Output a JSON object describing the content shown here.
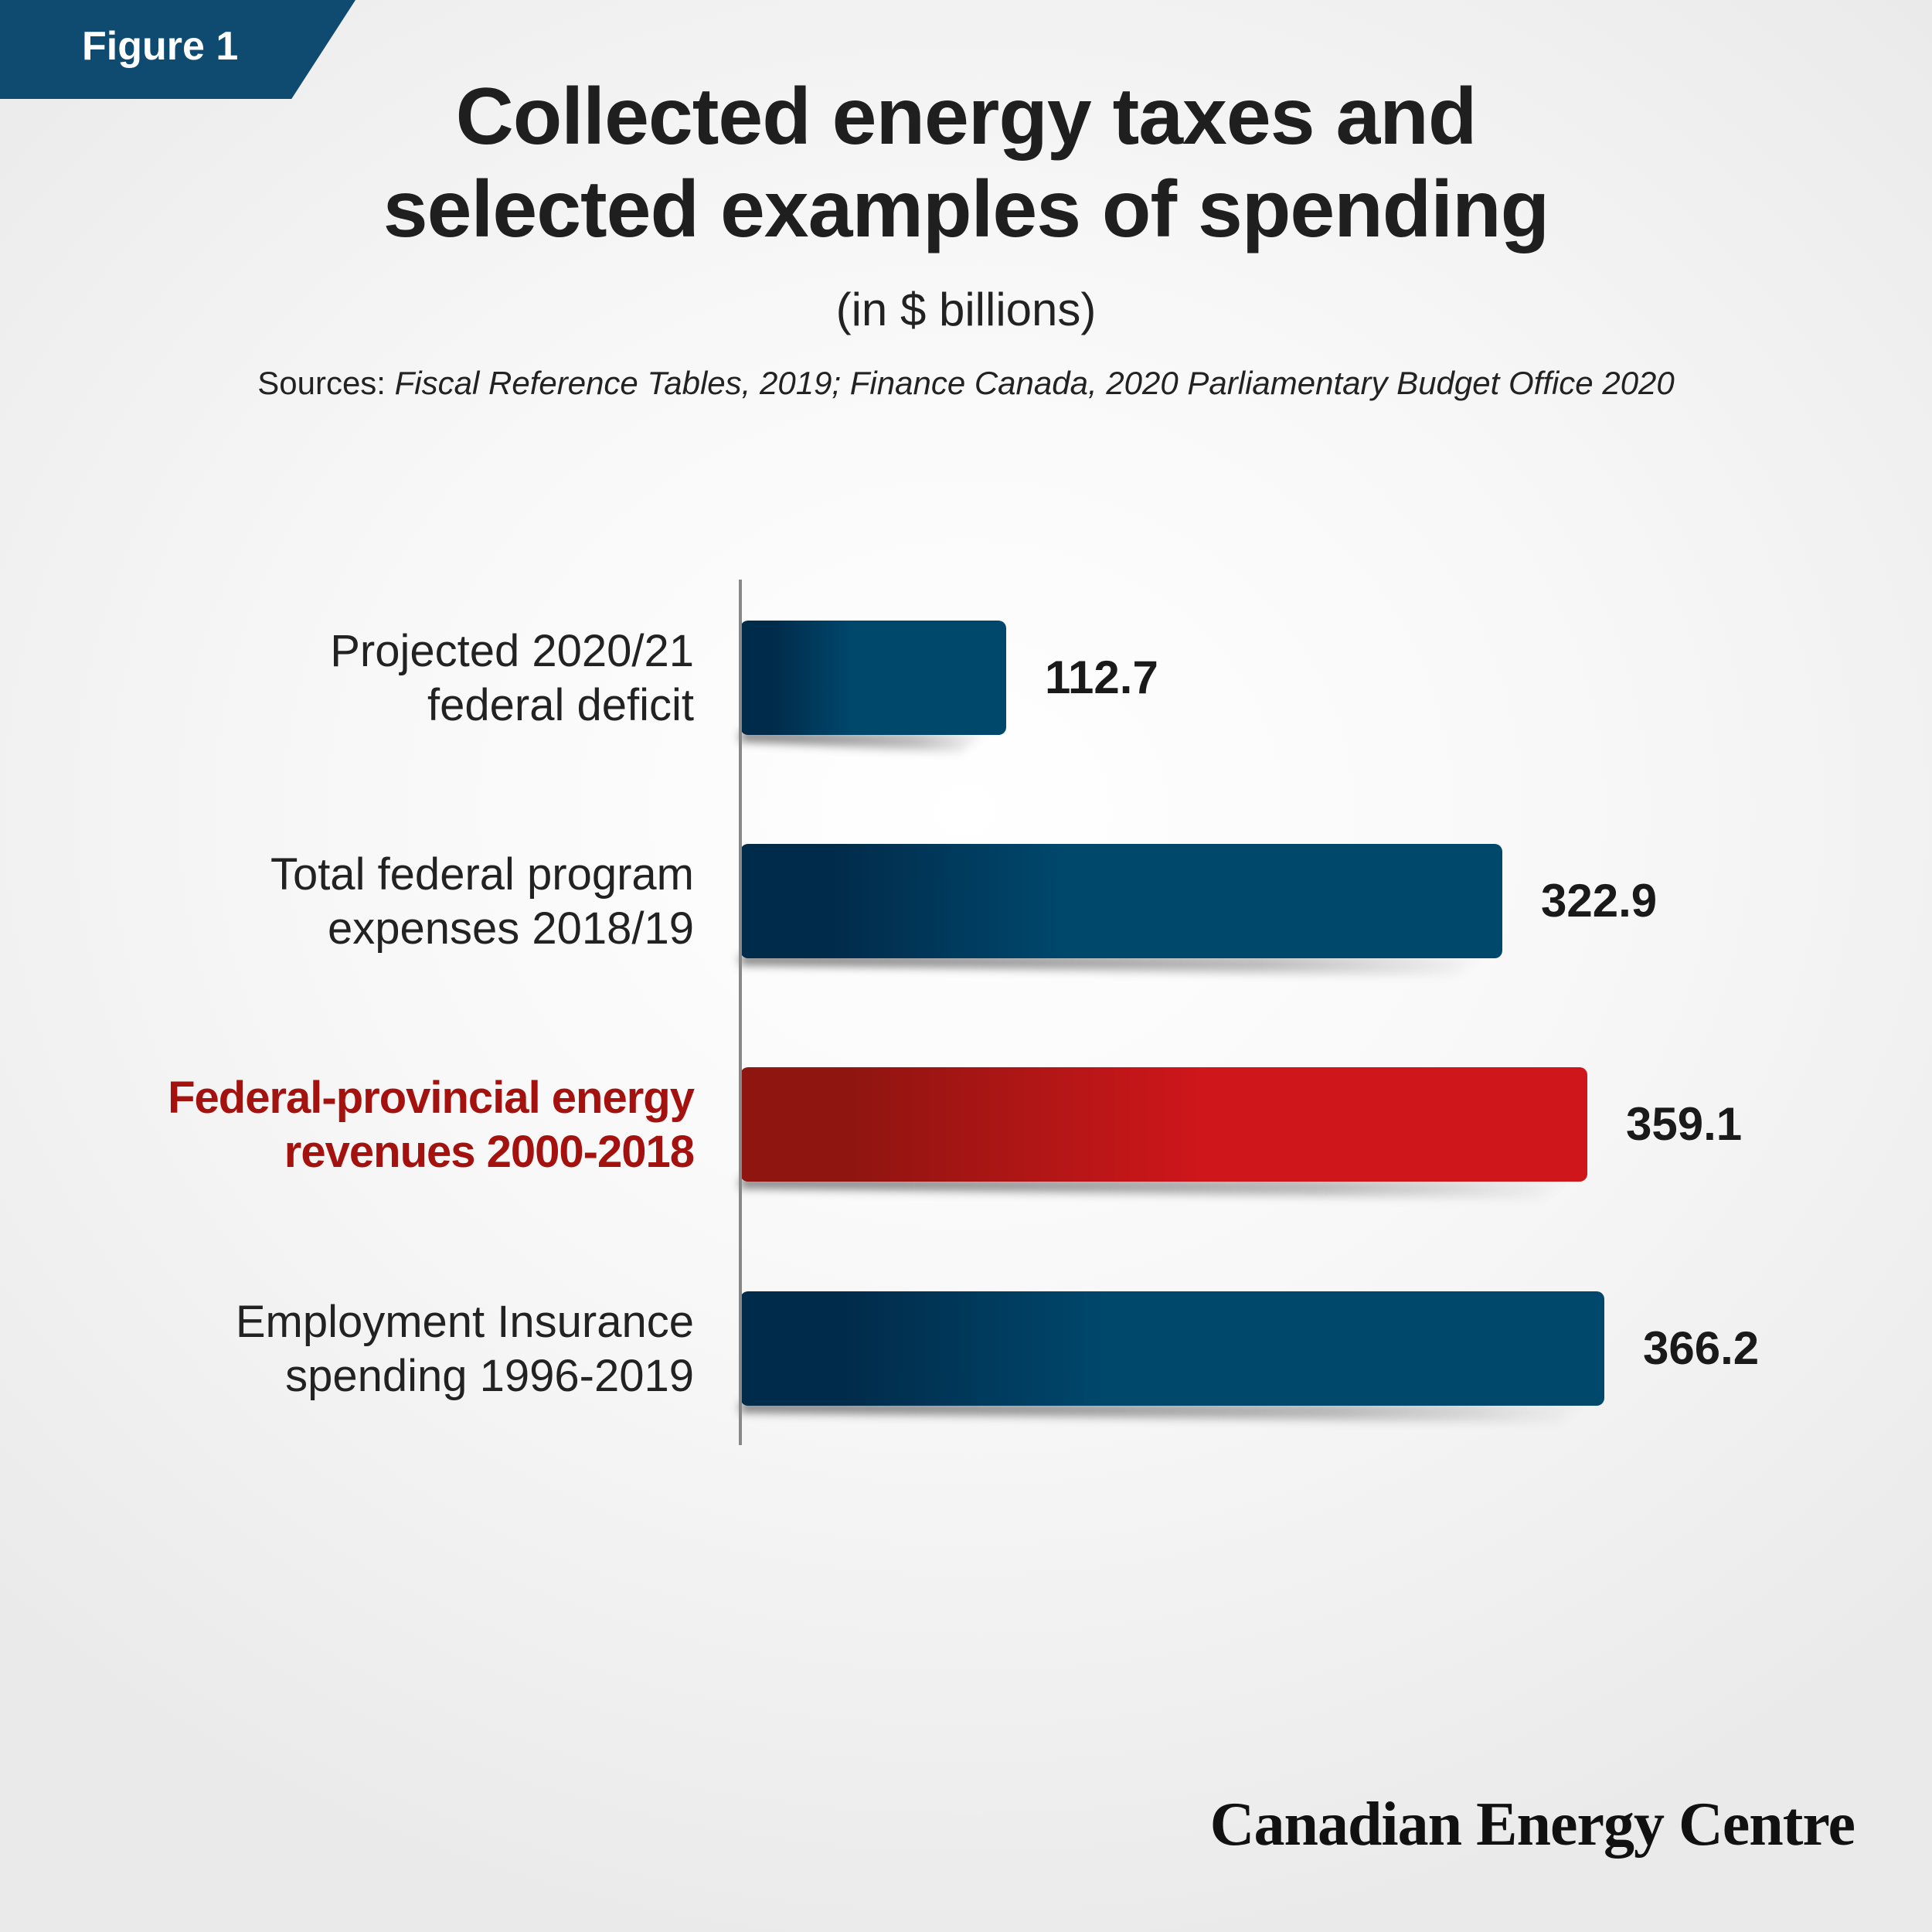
{
  "figure_tab": {
    "label": "Figure 1"
  },
  "header": {
    "title_line_1": "Collected energy taxes and",
    "title_line_2": "selected examples of spending",
    "subtitle": "(in $ billions)",
    "sources_label": "Sources: ",
    "sources_text": "Fiscal Reference Tables, 2019; Finance Canada, 2020 Parliamentary Budget Office 2020"
  },
  "brand": {
    "name": "Canadian Energy Centre"
  },
  "colors": {
    "bar_dark": "#012b4a",
    "bar_light": "#00476c",
    "highlight_dark": "#8e1510",
    "highlight_light": "#cf161b",
    "highlight_text": "#a3120f",
    "label_text": "#222222",
    "value_text": "#1a1a1a",
    "axis_line": "#888888"
  },
  "chart_data": {
    "type": "bar",
    "orientation": "horizontal",
    "title": "Collected energy taxes and selected examples of spending",
    "subtitle": "(in $ billions)",
    "categories": [
      [
        "Projected 2020/21",
        "federal deficit"
      ],
      [
        "Total federal program",
        "expenses 2018/19"
      ],
      [
        "Federal-provincial energy",
        "revenues 2000-2018"
      ],
      [
        "Employment Insurance",
        "spending 1996-2019"
      ]
    ],
    "values": [
      112.7,
      322.9,
      359.1,
      366.2
    ],
    "value_labels": [
      "112.7",
      "322.9",
      "359.1",
      "366.2"
    ],
    "highlighted": [
      false,
      false,
      true,
      false
    ],
    "xlim": [
      0,
      366.2
    ],
    "grid": false,
    "legend": "none"
  }
}
